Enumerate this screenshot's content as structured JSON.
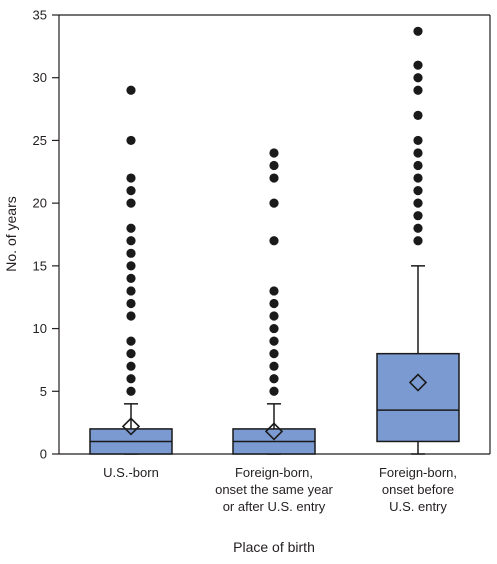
{
  "chart_data": {
    "type": "box",
    "xlabel": "Place of birth",
    "ylabel": "No. of years",
    "ylim": [
      0,
      35
    ],
    "yticks": [
      0,
      5,
      10,
      15,
      20,
      25,
      30,
      35
    ],
    "grid": false,
    "box_color": "#7b9ad1",
    "box_stroke": "#1a1a1a",
    "categories": [
      {
        "label_lines": [
          "U.S.-born"
        ]
      },
      {
        "label_lines": [
          "Foreign-born,",
          "onset the same year",
          "or after U.S. entry"
        ]
      },
      {
        "label_lines": [
          "Foreign-born,",
          "onset before",
          "U.S. entry"
        ]
      }
    ],
    "series": [
      {
        "whisker_low": 0,
        "q1": 0,
        "median": 1,
        "q3": 2,
        "whisker_high": 4,
        "mean": 2.2,
        "outliers": [
          5,
          6,
          7,
          8,
          9,
          11,
          12,
          13,
          14,
          15,
          16,
          17,
          18,
          20,
          21,
          22,
          25,
          29
        ]
      },
      {
        "whisker_low": 0,
        "q1": 0,
        "median": 1,
        "q3": 2,
        "whisker_high": 4,
        "mean": 1.8,
        "outliers": [
          5,
          6,
          7,
          8,
          9,
          10,
          11,
          12,
          13,
          17,
          20,
          22,
          23,
          24
        ]
      },
      {
        "whisker_low": 0,
        "q1": 1,
        "median": 3.5,
        "q3": 8,
        "whisker_high": 15,
        "mean": 5.7,
        "outliers": [
          17,
          18,
          19,
          20,
          21,
          22,
          23,
          24,
          25,
          27,
          29,
          30,
          31,
          33.7
        ]
      }
    ]
  }
}
